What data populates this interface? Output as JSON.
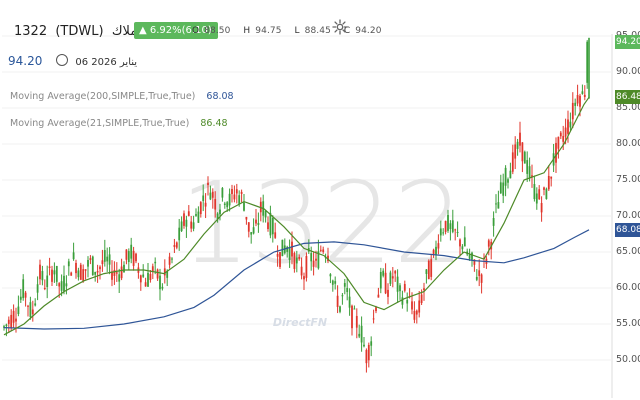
{
  "header": {
    "symbol": "1322",
    "code": "(TDWL)",
    "name": "أملاك",
    "change_badge": "6.92%(6.10)",
    "ohlc": [
      {
        "k": "O",
        "v": "88.50"
      },
      {
        "k": "H",
        "v": "94.75"
      },
      {
        "k": "L",
        "v": "88.45"
      },
      {
        "k": "C",
        "v": "94.20"
      }
    ]
  },
  "last": {
    "price": "94.20",
    "date": "06 يناير 2026"
  },
  "indicators": {
    "ma200_label": "Moving Average(200,SIMPLE,True,True)",
    "ma200_value": "68.08",
    "ma21_label": "Moving Average(21,SIMPLE,True,True)",
    "ma21_value": "86.48"
  },
  "watermark": {
    "symbol": "1322",
    "brand": "DirectFN"
  },
  "chart_data": {
    "type": "candlestick",
    "y_ticks": [
      "95.00",
      "90.00",
      "85.00",
      "80.00",
      "75.00",
      "70.00",
      "65.00",
      "60.00",
      "55.00",
      "50.00"
    ],
    "ylim": [
      46.5,
      96.5
    ],
    "price_labels": [
      {
        "value": 94.2,
        "label": "94.20",
        "color": "#5cb85c"
      },
      {
        "value": 86.48,
        "label": "86.48",
        "color": "#4e8a28"
      },
      {
        "value": 68.08,
        "label": "68.08",
        "color": "#2f5597"
      }
    ],
    "close_path": [
      [
        0,
        54.5
      ],
      [
        6,
        55.5
      ],
      [
        13,
        57
      ],
      [
        20,
        60
      ],
      [
        28,
        56
      ],
      [
        35,
        62
      ],
      [
        42,
        60.5
      ],
      [
        50,
        63
      ],
      [
        57,
        59.5
      ],
      [
        63,
        62
      ],
      [
        70,
        64
      ],
      [
        78,
        62
      ],
      [
        86,
        63.5
      ],
      [
        94,
        62.5
      ],
      [
        102,
        64
      ],
      [
        110,
        62
      ],
      [
        118,
        62.5
      ],
      [
        126,
        65
      ],
      [
        134,
        63
      ],
      [
        142,
        61
      ],
      [
        150,
        62.5
      ],
      [
        158,
        60.5
      ],
      [
        166,
        63
      ],
      [
        174,
        66.5
      ],
      [
        182,
        70
      ],
      [
        190,
        69
      ],
      [
        198,
        72
      ],
      [
        206,
        74
      ],
      [
        214,
        71
      ],
      [
        220,
        73
      ],
      [
        226,
        72
      ],
      [
        232,
        73.5
      ],
      [
        240,
        72
      ],
      [
        246,
        67.5
      ],
      [
        252,
        68
      ],
      [
        258,
        71.5
      ],
      [
        264,
        69.5
      ],
      [
        270,
        68
      ],
      [
        276,
        64.5
      ],
      [
        282,
        66
      ],
      [
        288,
        65
      ],
      [
        294,
        63
      ],
      [
        300,
        62
      ],
      [
        306,
        64.5
      ],
      [
        312,
        63
      ],
      [
        318,
        66
      ],
      [
        324,
        65
      ],
      [
        330,
        60
      ],
      [
        336,
        57.5
      ],
      [
        342,
        60
      ],
      [
        348,
        56
      ],
      [
        354,
        55
      ],
      [
        358,
        53.5
      ],
      [
        362,
        50.5
      ],
      [
        366,
        52
      ],
      [
        372,
        58
      ],
      [
        378,
        61.5
      ],
      [
        384,
        60
      ],
      [
        390,
        62
      ],
      [
        396,
        59
      ],
      [
        402,
        59.5
      ],
      [
        408,
        57
      ],
      [
        414,
        56
      ],
      [
        418,
        59
      ],
      [
        424,
        62
      ],
      [
        430,
        64
      ],
      [
        436,
        68
      ],
      [
        442,
        69
      ],
      [
        448,
        68
      ],
      [
        454,
        67
      ],
      [
        460,
        66
      ],
      [
        466,
        64
      ],
      [
        472,
        62.5
      ],
      [
        476,
        61.5
      ],
      [
        480,
        63
      ],
      [
        486,
        66
      ],
      [
        492,
        70.5
      ],
      [
        498,
        74
      ],
      [
        504,
        76
      ],
      [
        510,
        78
      ],
      [
        516,
        80
      ],
      [
        520,
        78.5
      ],
      [
        526,
        75.5
      ],
      [
        532,
        73
      ],
      [
        538,
        72
      ],
      [
        544,
        74
      ],
      [
        550,
        78
      ],
      [
        556,
        80
      ],
      [
        562,
        82
      ],
      [
        568,
        84
      ],
      [
        574,
        87
      ],
      [
        578,
        86.5
      ],
      [
        582,
        88
      ],
      [
        585,
        94.2
      ]
    ],
    "ma21_path": [
      [
        0,
        53.5
      ],
      [
        20,
        55
      ],
      [
        40,
        57.5
      ],
      [
        60,
        59.5
      ],
      [
        80,
        61
      ],
      [
        100,
        62
      ],
      [
        120,
        62.5
      ],
      [
        140,
        62.5
      ],
      [
        160,
        62
      ],
      [
        180,
        64
      ],
      [
        200,
        67.5
      ],
      [
        220,
        70.5
      ],
      [
        240,
        72
      ],
      [
        260,
        71
      ],
      [
        280,
        68.5
      ],
      [
        300,
        65.5
      ],
      [
        320,
        64.5
      ],
      [
        340,
        62
      ],
      [
        360,
        58
      ],
      [
        380,
        57
      ],
      [
        400,
        58.5
      ],
      [
        420,
        59.5
      ],
      [
        440,
        62.5
      ],
      [
        460,
        65
      ],
      [
        480,
        64
      ],
      [
        500,
        69
      ],
      [
        520,
        75
      ],
      [
        540,
        76
      ],
      [
        560,
        80
      ],
      [
        580,
        85.5
      ],
      [
        585,
        86.48
      ]
    ],
    "ma200_path": [
      [
        0,
        54.5
      ],
      [
        40,
        54.3
      ],
      [
        80,
        54.4
      ],
      [
        120,
        55
      ],
      [
        160,
        56
      ],
      [
        190,
        57.3
      ],
      [
        210,
        59
      ],
      [
        240,
        62.5
      ],
      [
        270,
        65
      ],
      [
        300,
        66.2
      ],
      [
        330,
        66.4
      ],
      [
        360,
        66
      ],
      [
        400,
        65
      ],
      [
        440,
        64.5
      ],
      [
        470,
        63.8
      ],
      [
        500,
        63.5
      ],
      [
        520,
        64.2
      ],
      [
        550,
        65.5
      ],
      [
        570,
        67
      ],
      [
        585,
        68.08
      ]
    ],
    "grid": "horizontal"
  }
}
